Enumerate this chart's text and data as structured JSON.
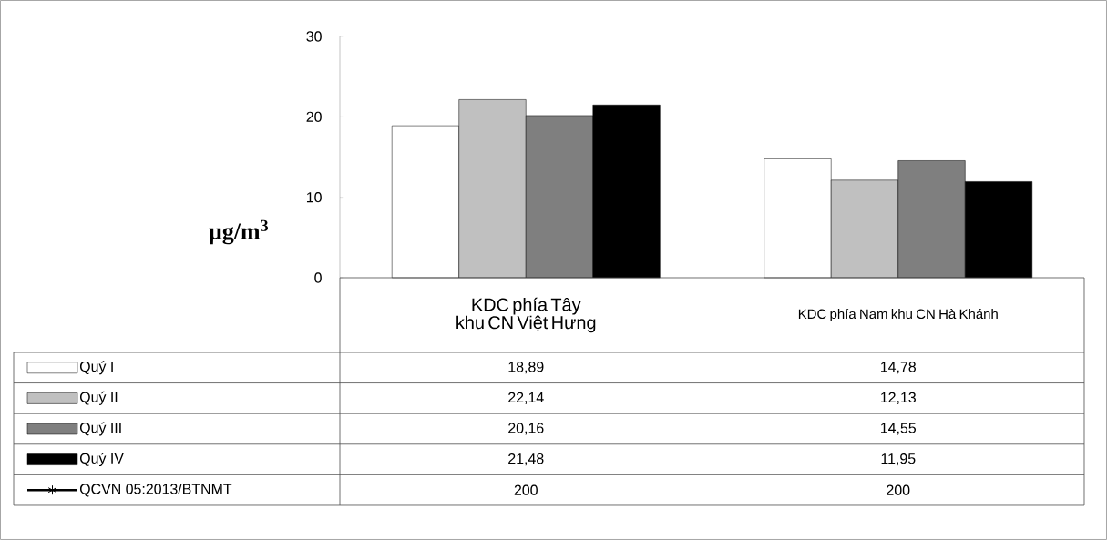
{
  "chart_data": {
    "type": "bar",
    "ylabel": "µg/m$^{3}$",
    "categories": [
      "KDC phía Tây khu CN Việt Hưng",
      "KDC phía Nam khu CN Hà Khánh"
    ],
    "ylim": [
      0,
      30
    ],
    "yticks": [
      0,
      10,
      20,
      30
    ],
    "legend": "bottom",
    "series": [
      {
        "name": "Quý I",
        "color": "#ffffff",
        "values": [
          18.89,
          14.78
        ],
        "value_labels": [
          "18,89",
          "14,78"
        ]
      },
      {
        "name": "Quý II",
        "color": "#c0c0c0",
        "values": [
          22.14,
          12.13
        ],
        "value_labels": [
          "22,14",
          "12,13"
        ]
      },
      {
        "name": "Quý III",
        "color": "#7f7f7f",
        "values": [
          20.16,
          14.55
        ],
        "value_labels": [
          "20,16",
          "14,55"
        ]
      },
      {
        "name": "Quý IV",
        "color": "#000000",
        "values": [
          21.48,
          11.95
        ],
        "value_labels": [
          "21,48",
          "11,95"
        ]
      },
      {
        "name": "QCVN 05:2013/BTNMT",
        "type": "line",
        "marker": "star",
        "color": "#000000",
        "values": [
          null,
          null
        ],
        "value_labels": [
          "200",
          "200"
        ]
      }
    ]
  }
}
